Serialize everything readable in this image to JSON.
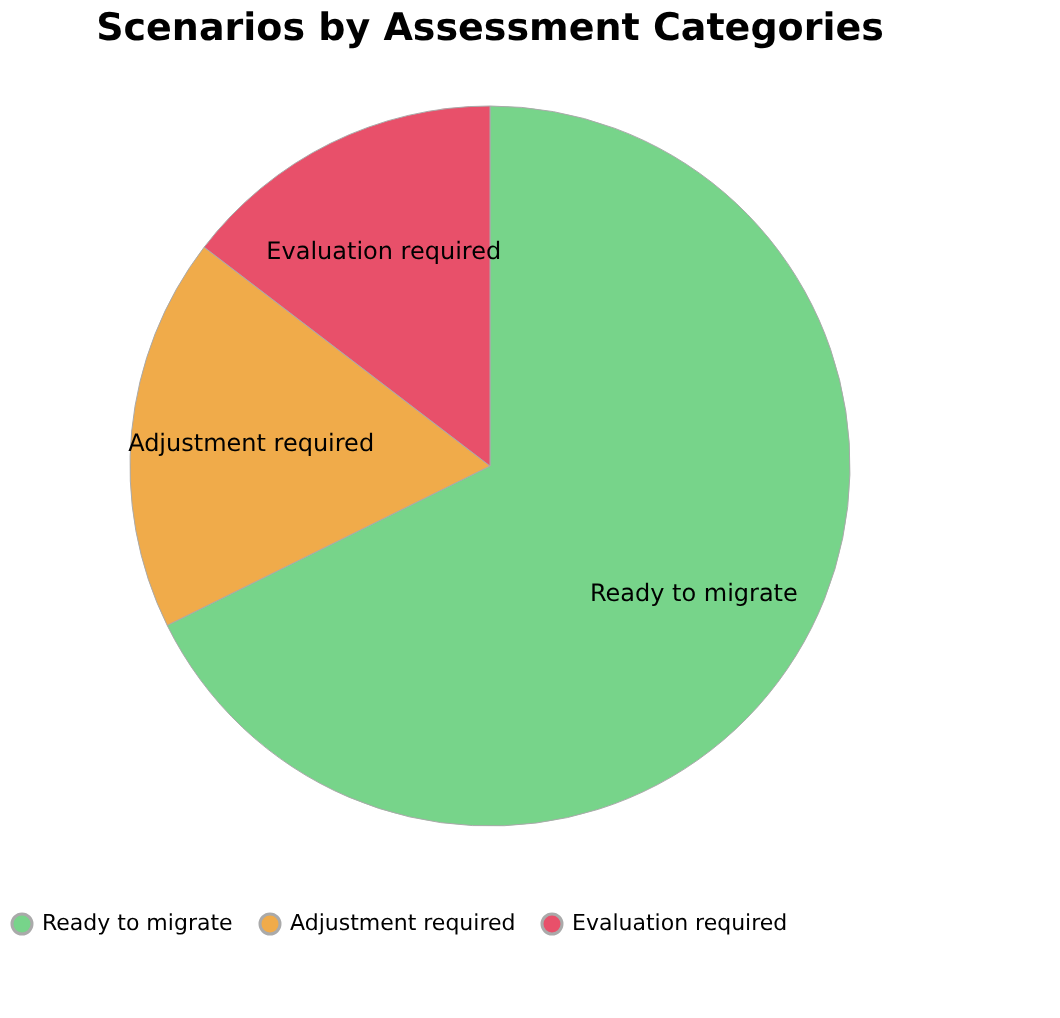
{
  "chart_data": {
    "type": "pie",
    "title": "Scenarios by Assessment Categories",
    "categories": [
      "Ready to migrate",
      "Adjustment required",
      "Evaluation required"
    ],
    "values": [
      67.7,
      17.7,
      14.6
    ],
    "colors": [
      "#77d48a",
      "#f0ab4a",
      "#e8506a"
    ],
    "legend": "bottom"
  }
}
